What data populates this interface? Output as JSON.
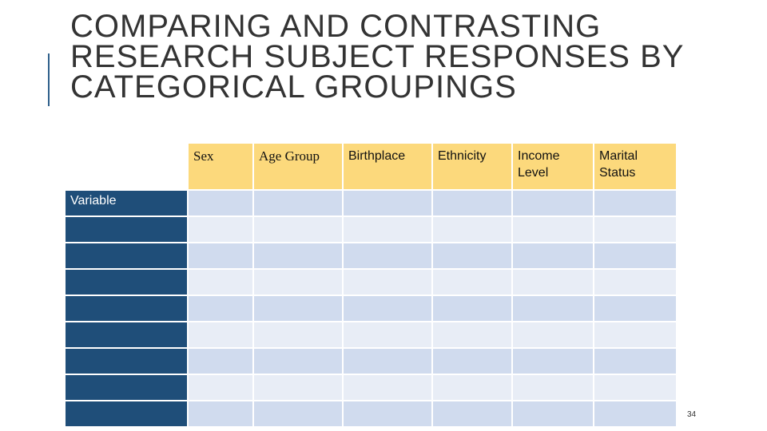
{
  "slide": {
    "title": "COMPARING AND CONTRASTING RESEARCH SUBJECT RESPONSES BY CATEGORICAL GROUPINGS",
    "page_number": "34"
  },
  "table": {
    "columns": [
      "Sex",
      "Age Group",
      "Birthplace",
      "Ethnicity",
      "Income Level",
      "Marital Status"
    ],
    "rows": [
      {
        "label": "Variable",
        "cells": [
          "",
          "",
          "",
          "",
          "",
          ""
        ]
      },
      {
        "label": "",
        "cells": [
          "",
          "",
          "",
          "",
          "",
          ""
        ]
      },
      {
        "label": "",
        "cells": [
          "",
          "",
          "",
          "",
          "",
          ""
        ]
      },
      {
        "label": "",
        "cells": [
          "",
          "",
          "",
          "",
          "",
          ""
        ]
      },
      {
        "label": "",
        "cells": [
          "",
          "",
          "",
          "",
          "",
          ""
        ]
      },
      {
        "label": "",
        "cells": [
          "",
          "",
          "",
          "",
          "",
          ""
        ]
      },
      {
        "label": "",
        "cells": [
          "",
          "",
          "",
          "",
          "",
          ""
        ]
      },
      {
        "label": "",
        "cells": [
          "",
          "",
          "",
          "",
          "",
          ""
        ]
      },
      {
        "label": "",
        "cells": [
          "",
          "",
          "",
          "",
          "",
          ""
        ]
      }
    ]
  },
  "colors": {
    "header_fill": "#fcd97c",
    "row_label_fill": "#1f4e79",
    "cell_fill_dark": "#d0dbee",
    "cell_fill_light": "#e8edf6",
    "accent": "#2e5f8a"
  }
}
